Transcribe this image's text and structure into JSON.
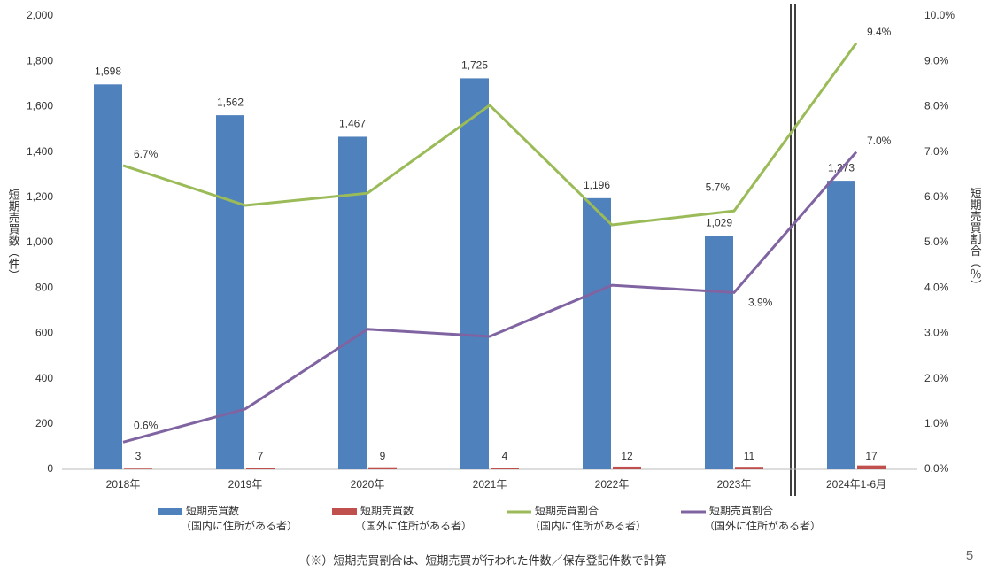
{
  "chart_data": {
    "type": "bar_line",
    "y_label": "短期売買数（件）",
    "y2_label": "短期売買割合（％）",
    "footnote": "（※）短期売買割合は、短期売買が行われた件数／保存登記件数で計算",
    "page_number": "5",
    "categories": [
      "2018年",
      "2019年",
      "2020年",
      "2021年",
      "2022年",
      "2023年",
      "2024年1-6月"
    ],
    "ylim": [
      0,
      2000
    ],
    "yticks": [
      0,
      200,
      400,
      600,
      800,
      {
        "value": 1000,
        "label": "1,000"
      },
      {
        "value": 1200,
        "label": "1,200"
      },
      {
        "value": 1400,
        "label": "1,400"
      },
      {
        "value": 1600,
        "label": "1,600"
      },
      {
        "value": 1800,
        "label": "1,800"
      },
      {
        "value": 2000,
        "label": "2,000"
      }
    ],
    "y2lim": [
      0,
      10
    ],
    "y2ticks": [
      {
        "value": 0,
        "label": "0.0%"
      },
      {
        "value": 1,
        "label": "1.0%"
      },
      {
        "value": 2,
        "label": "2.0%"
      },
      {
        "value": 3,
        "label": "3.0%"
      },
      {
        "value": 4,
        "label": "4.0%"
      },
      {
        "value": 5,
        "label": "5.0%"
      },
      {
        "value": 6,
        "label": "6.0%"
      },
      {
        "value": 7,
        "label": "7.0%"
      },
      {
        "value": 8,
        "label": "8.0%"
      },
      {
        "value": 9,
        "label": "9.0%"
      },
      {
        "value": 10,
        "label": "10.0%"
      }
    ],
    "series": [
      {
        "name": "短期売買数",
        "name_sub": "（国内に住所がある者）",
        "type": "bar",
        "color": "#4f81bd",
        "values": [
          1698,
          1562,
          1467,
          1725,
          1196,
          1029,
          1273
        ],
        "value_labels": [
          "1,698",
          "1,562",
          "1,467",
          "1,725",
          "1,196",
          "1,029",
          "1,273"
        ]
      },
      {
        "name": "短期売買数",
        "name_sub": "（国外に住所がある者）",
        "type": "bar",
        "color": "#c0504d",
        "values": [
          3,
          7,
          9,
          4,
          12,
          11,
          17
        ]
      },
      {
        "name": "短期売買割合",
        "name_sub": "（国内に住所がある者）",
        "type": "line",
        "axis": "y2",
        "color": "#9bbb59",
        "values": [
          6.7,
          5.82,
          6.09,
          8.03,
          5.39,
          5.7,
          9.4
        ],
        "value_labels": [
          "6.7%",
          null,
          null,
          null,
          null,
          "5.7%",
          "9.4%"
        ]
      },
      {
        "name": "短期売買割合",
        "name_sub": "（国外に住所がある者）",
        "type": "line",
        "axis": "y2",
        "color": "#8064a2",
        "values": [
          0.6,
          1.33,
          3.09,
          2.93,
          4.06,
          3.9,
          7.0
        ],
        "value_labels": [
          "0.6%",
          null,
          null,
          null,
          null,
          "3.9%",
          "7.0%"
        ]
      }
    ]
  }
}
